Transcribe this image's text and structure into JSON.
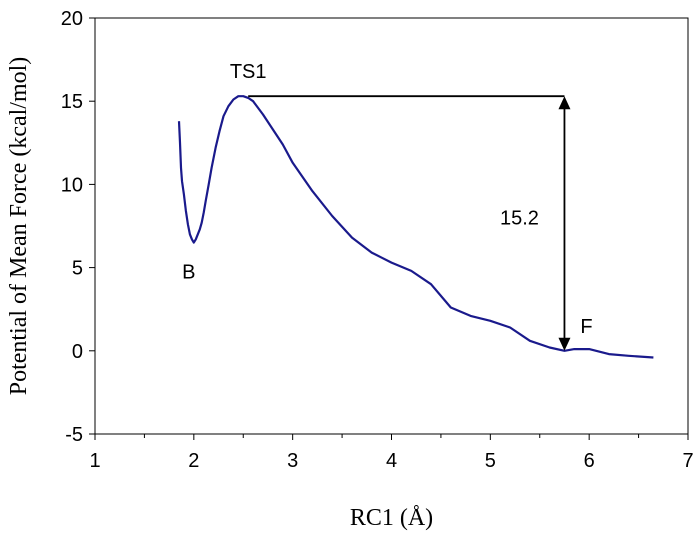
{
  "chart_data": {
    "type": "line",
    "title": "",
    "xlabel": "RC1 (Å)",
    "ylabel": "Potential of Mean Force (kcal/mol)",
    "xlim": [
      1,
      7
    ],
    "ylim": [
      -5,
      20
    ],
    "x_ticks": [
      1,
      2,
      3,
      4,
      5,
      6,
      7
    ],
    "y_ticks": [
      -5,
      0,
      5,
      10,
      15,
      20
    ],
    "grid": false,
    "legend": "none",
    "line_color": "#1a1a8c",
    "series": [
      {
        "x": [
          1.85,
          1.86,
          1.87,
          1.88,
          1.9,
          1.92,
          1.94,
          1.96,
          1.98,
          2.0,
          2.02,
          2.04,
          2.06,
          2.08,
          2.1,
          2.12,
          2.15,
          2.18,
          2.22,
          2.26,
          2.3,
          2.35,
          2.4,
          2.45,
          2.5,
          2.55,
          2.6,
          2.7,
          2.8,
          2.9,
          3.0,
          3.2,
          3.4,
          3.6,
          3.8,
          4.0,
          4.2,
          4.4,
          4.6,
          4.8,
          5.0,
          5.2,
          5.4,
          5.6,
          5.75,
          5.85,
          6.0,
          6.2,
          6.4,
          6.65
        ],
        "y": [
          13.8,
          12.5,
          11.0,
          10.2,
          9.4,
          8.4,
          7.6,
          7.0,
          6.7,
          6.5,
          6.7,
          7.0,
          7.3,
          7.7,
          8.3,
          9.0,
          10.0,
          11.0,
          12.2,
          13.2,
          14.1,
          14.7,
          15.1,
          15.3,
          15.3,
          15.2,
          15.0,
          14.2,
          13.3,
          12.4,
          11.3,
          9.6,
          8.1,
          6.8,
          5.9,
          5.3,
          4.8,
          4.0,
          2.6,
          2.1,
          1.8,
          1.4,
          0.6,
          0.2,
          0.0,
          0.1,
          0.1,
          -0.2,
          -0.3,
          -0.4
        ]
      }
    ],
    "annotations": [
      {
        "text": "TS1",
        "x": 2.55,
        "y": 15.3
      },
      {
        "text": "B",
        "x": 2.0,
        "y": 6.5
      },
      {
        "text": "F",
        "x": 5.75,
        "y": 0.0
      },
      {
        "text": "15.2",
        "x": 5.75,
        "y": 7.6
      }
    ],
    "barrier": {
      "x": 5.75,
      "from_y": 0.0,
      "to_y": 15.3,
      "hline_from_x": 2.55,
      "value_label": "15.2"
    }
  }
}
